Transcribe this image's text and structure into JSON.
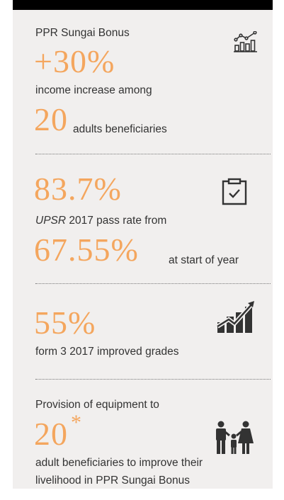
{
  "sections": [
    {
      "title": "PPR Sungai Bonus",
      "figure": "+30%",
      "text": "income increase among",
      "figure2": "20",
      "text2": "adults beneficiaries"
    },
    {
      "figure": "83.7%",
      "text_italic": "UPSR",
      "text": "2017 pass rate from",
      "figure2": "67.55%",
      "text2": "at start of year"
    },
    {
      "figure": "55%",
      "text": "form 3 2017 improved grades"
    },
    {
      "title": "Provision of equipment to",
      "figure": "20",
      "footnote_mark": "*",
      "text": "adult beneficiaries to improve their",
      "text2": "livelihood in PPR Sungai Bonus"
    }
  ]
}
